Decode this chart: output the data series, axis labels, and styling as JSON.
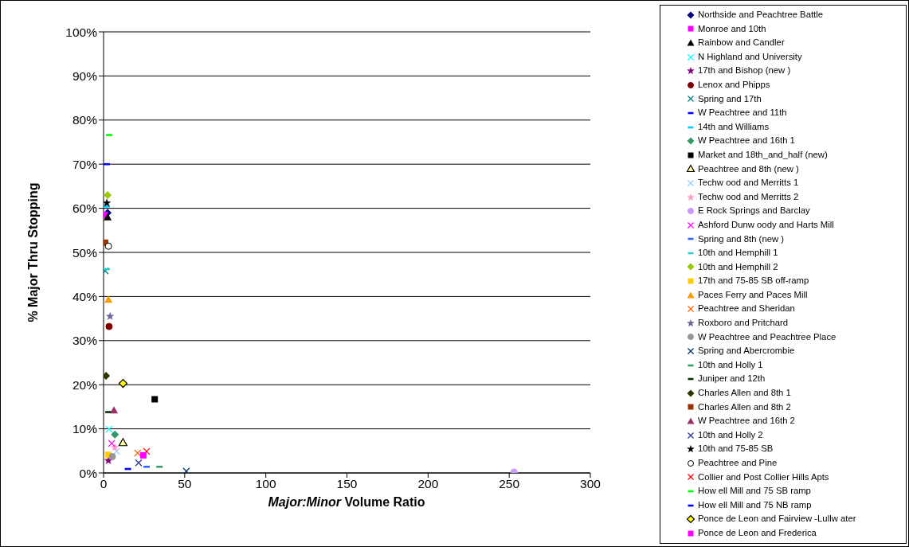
{
  "chart_data": {
    "type": "scatter",
    "xlabel": "Major:Minor Volume Ratio",
    "ylabel": "% Major Thru Stopping",
    "xlim": [
      0,
      300
    ],
    "xticks": [
      0,
      50,
      100,
      150,
      200,
      250,
      300
    ],
    "ylim": [
      0,
      100
    ],
    "yticks": [
      {
        "value": 0,
        "label": "0%"
      },
      {
        "value": 10,
        "label": "10%"
      },
      {
        "value": 20,
        "label": "20%"
      },
      {
        "value": 30,
        "label": "30%"
      },
      {
        "value": 40,
        "label": "40%"
      },
      {
        "value": 50,
        "label": "50%"
      },
      {
        "value": 60,
        "label": "60%"
      },
      {
        "value": 70,
        "label": "70%"
      },
      {
        "value": 80,
        "label": "80%"
      },
      {
        "value": 90,
        "label": "90%"
      },
      {
        "value": 100,
        "label": "100%"
      }
    ],
    "grid": "y",
    "legend": "right",
    "series": [
      {
        "name": "Northside and Peachtree Battle",
        "color": "#000080",
        "marker": "diamond",
        "x": [
          2.5
        ],
        "values": [
          59
        ]
      },
      {
        "name": "Monroe and 10th",
        "color": "#ff00ff",
        "marker": "square",
        "x": [
          0.5
        ],
        "values": [
          58.5
        ]
      },
      {
        "name": "Rainbow  and Candler",
        "color": "#000000",
        "marker": "triangle",
        "x": [
          2.5
        ],
        "values": [
          58
        ]
      },
      {
        "name": "N Highland and University",
        "color": "#00ffff",
        "marker": "cross",
        "x": [
          3.4
        ],
        "values": [
          9.9
        ]
      },
      {
        "name": "17th and Bishop (new )",
        "color": "#800080",
        "marker": "star",
        "x": [
          3
        ],
        "values": [
          2.8
        ]
      },
      {
        "name": "Lenox and Phipps",
        "color": "#800000",
        "marker": "circle",
        "x": [
          3.4
        ],
        "values": [
          33.2
        ]
      },
      {
        "name": "Spring and 17th",
        "color": "#008080",
        "marker": "cross",
        "x": [
          1
        ],
        "values": [
          45.8
        ]
      },
      {
        "name": "W Peachtree and 11th",
        "color": "#0000ff",
        "x": [
          15
        ],
        "values": [
          0.9
        ]
      },
      {
        "name": "14th and Williams",
        "color": "#00ccff",
        "x": [
          2
        ],
        "values": [
          60.4
        ]
      },
      {
        "name": "W Peachtree and 16th 1",
        "color": "#339966",
        "marker": "diamond",
        "x": [
          7
        ],
        "values": [
          8.7
        ]
      },
      {
        "name": "Market and 18th_and_half (new)",
        "color": "#000000",
        "marker": "square",
        "x": [
          31.5
        ],
        "values": [
          16.7
        ]
      },
      {
        "name": "Peachtree and 8th (new )",
        "color": "#ffff99",
        "marker": "triangle",
        "x": [
          12
        ],
        "values": [
          6.9
        ]
      },
      {
        "name": "Techw ood and Merritts 1",
        "color": "#99ccff",
        "marker": "cross",
        "x": [
          8
        ],
        "values": [
          4.9
        ]
      },
      {
        "name": "Techw ood and Merritts 2",
        "color": "#ff99cc",
        "marker": "star",
        "x": [
          7
        ],
        "values": [
          5.8
        ]
      },
      {
        "name": "E Rock Springs and Barclay",
        "color": "#cc99ff",
        "marker": "circle",
        "x": [
          253
        ],
        "values": [
          0.2
        ]
      },
      {
        "name": "Ashford Dunw oody and Harts Mill",
        "color": "#ff00ff",
        "marker": "cross",
        "x": [
          5
        ],
        "values": [
          6.7
        ]
      },
      {
        "name": "Spring and 8th (new )",
        "color": "#3366ff",
        "x": [
          26.5
        ],
        "values": [
          1.4
        ]
      },
      {
        "name": "10th and Hemphill 1",
        "color": "#33cccc",
        "x": [
          2
        ],
        "values": [
          46.2
        ]
      },
      {
        "name": "10th and Hemphill 2",
        "color": "#99cc00",
        "marker": "diamond",
        "x": [
          2.5
        ],
        "values": [
          63
        ]
      },
      {
        "name": "17th and 75-85 SB off-ramp",
        "color": "#ffcc00",
        "marker": "square",
        "x": [
          3
        ],
        "values": [
          4.1
        ]
      },
      {
        "name": "Paces Ferry and Paces Mill",
        "color": "#ff9900",
        "marker": "triangle",
        "x": [
          3
        ],
        "values": [
          39.3
        ]
      },
      {
        "name": "Peachtree and Sheridan",
        "color": "#ff6600",
        "marker": "cross",
        "x": [
          21
        ],
        "values": [
          4.5
        ]
      },
      {
        "name": "Roxboro and Pritchard",
        "color": "#666699",
        "marker": "star",
        "x": [
          4
        ],
        "values": [
          35.5
        ]
      },
      {
        "name": "W Peachtree and Peachtree Place",
        "color": "#969696",
        "marker": "circle",
        "x": [
          5.4
        ],
        "values": [
          3.7
        ]
      },
      {
        "name": "Spring and Abercrombie",
        "color": "#003366",
        "marker": "cross",
        "x": [
          51
        ],
        "values": [
          0.4
        ]
      },
      {
        "name": "10th and Holly 1",
        "color": "#339966",
        "x": [
          34.5
        ],
        "values": [
          1.4
        ]
      },
      {
        "name": "Juniper and 12th",
        "color": "#003300",
        "x": [
          3
        ],
        "values": [
          13.8
        ]
      },
      {
        "name": "Charles Allen and 8th 1",
        "color": "#333300",
        "marker": "diamond",
        "x": [
          1.5
        ],
        "values": [
          22
        ]
      },
      {
        "name": "Charles Allen and 8th 2",
        "color": "#993300",
        "marker": "square",
        "x": [
          1
        ],
        "values": [
          52.2
        ]
      },
      {
        "name": "W Peachtree and 16th 2",
        "color": "#993366",
        "marker": "triangle",
        "x": [
          6.4
        ],
        "values": [
          14.2
        ]
      },
      {
        "name": "10th and Holly 2",
        "color": "#333399",
        "marker": "cross",
        "x": [
          21.6
        ],
        "values": [
          2.3
        ]
      },
      {
        "name": "10th and 75-85 SB",
        "color": "#000000",
        "marker": "star",
        "x": [
          2
        ],
        "values": [
          61.2
        ]
      },
      {
        "name": "Peachtree and Pine",
        "color": "#ffffff",
        "marker": "circle",
        "x": [
          3
        ],
        "values": [
          51.4
        ]
      },
      {
        "name": "Collier and Post Collier Hills Apts",
        "color": "#ff0000",
        "marker": "cross",
        "x": [
          26.5
        ],
        "values": [
          4.9
        ]
      },
      {
        "name": "How ell Mill and 75 SB ramp",
        "color": "#00ff00",
        "x": [
          3.4
        ],
        "values": [
          76.6
        ]
      },
      {
        "name": "How ell Mill and 75 NB ramp",
        "color": "#0000ff",
        "x": [
          2
        ],
        "values": [
          70
        ]
      },
      {
        "name": "Ponce de Leon and Fairview -Lullw ater",
        "color": "#ffff00",
        "marker": "diamond",
        "x": [
          12
        ],
        "values": [
          20.3
        ]
      },
      {
        "name": "Ponce de Leon and Frederica",
        "color": "#ff00ff",
        "marker": "square",
        "x": [
          24.5
        ],
        "values": [
          4
        ]
      }
    ]
  }
}
